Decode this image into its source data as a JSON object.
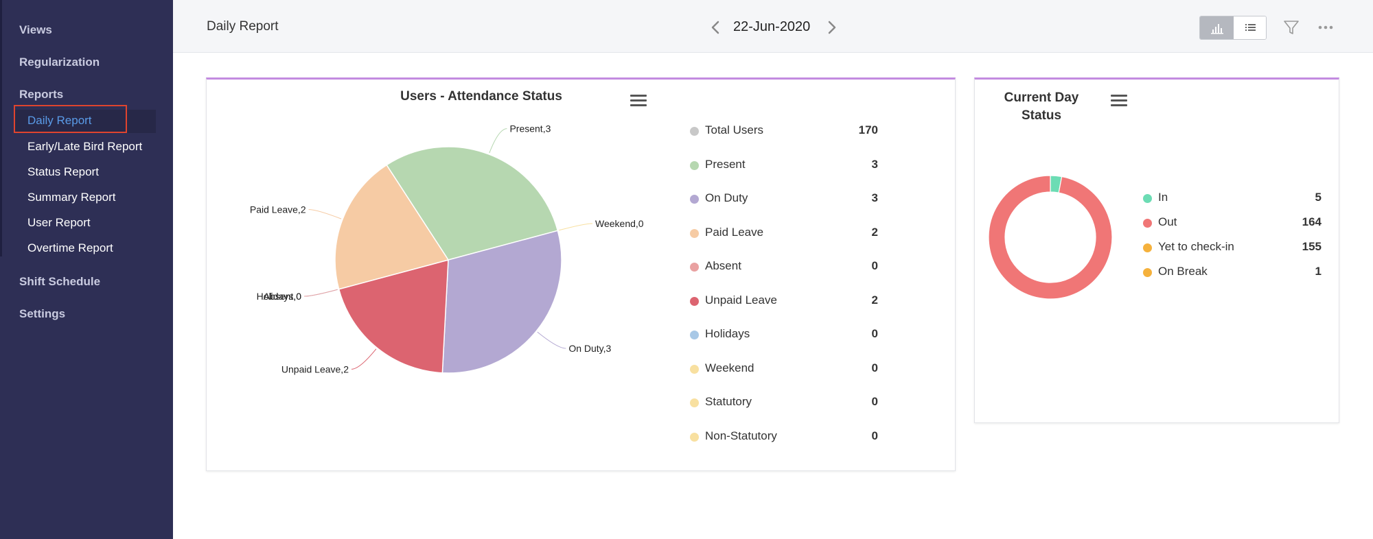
{
  "sidebar": {
    "items": [
      {
        "label": "Views",
        "type": "head"
      },
      {
        "label": "Regularization",
        "type": "head"
      },
      {
        "label": "Reports",
        "type": "head"
      },
      {
        "label": "Daily Report",
        "type": "sub",
        "active": true
      },
      {
        "label": "Early/Late Bird Report",
        "type": "sub"
      },
      {
        "label": "Status Report",
        "type": "sub"
      },
      {
        "label": "Summary Report",
        "type": "sub"
      },
      {
        "label": "User Report",
        "type": "sub"
      },
      {
        "label": "Overtime Report",
        "type": "sub"
      },
      {
        "label": "Shift Schedule",
        "type": "head"
      },
      {
        "label": "Settings",
        "type": "head"
      }
    ]
  },
  "header": {
    "title": "Daily Report",
    "date": "22-Jun-2020",
    "icons": [
      "chevron-left-icon",
      "chevron-right-icon",
      "bar-chart-icon",
      "list-icon",
      "filter-icon",
      "more-icon"
    ]
  },
  "attendance_card": {
    "title": "Users - Attendance Status",
    "menu_icon": "hamburger-icon",
    "legend": [
      {
        "label": "Total Users",
        "value": "170",
        "color": "#c8c8c8"
      },
      {
        "label": "Present",
        "value": "3",
        "color": "#b6d7b0"
      },
      {
        "label": "On Duty",
        "value": "3",
        "color": "#b3a8d2"
      },
      {
        "label": "Paid Leave",
        "value": "2",
        "color": "#f6cba4"
      },
      {
        "label": "Absent",
        "value": "0",
        "color": "#e9a1a1"
      },
      {
        "label": "Unpaid Leave",
        "value": "2",
        "color": "#dc6470"
      },
      {
        "label": "Holidays",
        "value": "0",
        "color": "#a8c8e6"
      },
      {
        "label": "Weekend",
        "value": "0",
        "color": "#f8e0a0"
      },
      {
        "label": "Statutory",
        "value": "0",
        "color": "#f8e0a0"
      },
      {
        "label": "Non-Statutory",
        "value": "0",
        "color": "#f8e0a0"
      }
    ]
  },
  "status_card": {
    "title_line1": "Current Day",
    "title_line2": "Status",
    "menu_icon": "hamburger-icon",
    "legend": [
      {
        "label": "In",
        "value": "5",
        "color": "#6cdcb4"
      },
      {
        "label": "Out",
        "value": "164",
        "color": "#f07676"
      },
      {
        "label": "Yet to check-in",
        "value": "155",
        "color": "#f5b13c"
      },
      {
        "label": "On Break",
        "value": "1",
        "color": "#f5b13c"
      }
    ]
  },
  "chart_data": [
    {
      "type": "pie",
      "title": "Users - Attendance Status",
      "slices": [
        {
          "name": "Present",
          "value": 3,
          "label": "Present,3",
          "color": "#b6d7b0"
        },
        {
          "name": "Weekend",
          "value": 0,
          "label": "Weekend,0",
          "color": "#f8e0a0"
        },
        {
          "name": "On Duty",
          "value": 3,
          "label": "On Duty,3",
          "color": "#b3a8d2"
        },
        {
          "name": "Unpaid Leave",
          "value": 2,
          "label": "Unpaid Leave,2",
          "color": "#dc6470"
        },
        {
          "name": "Holidays",
          "value": 0,
          "label": "Holidays,0",
          "color": "#a8c8e6"
        },
        {
          "name": "Absent",
          "value": 0,
          "label": "Absent,0",
          "color": "#e9a1a1"
        },
        {
          "name": "Paid Leave",
          "value": 2,
          "label": "Paid Leave,2",
          "color": "#f6cba4"
        }
      ]
    },
    {
      "type": "pie",
      "title": "Current Day Status",
      "donut": true,
      "slices": [
        {
          "name": "In",
          "value": 5,
          "color": "#6cdcb4"
        },
        {
          "name": "Out",
          "value": 164,
          "color": "#f07676"
        }
      ]
    }
  ]
}
